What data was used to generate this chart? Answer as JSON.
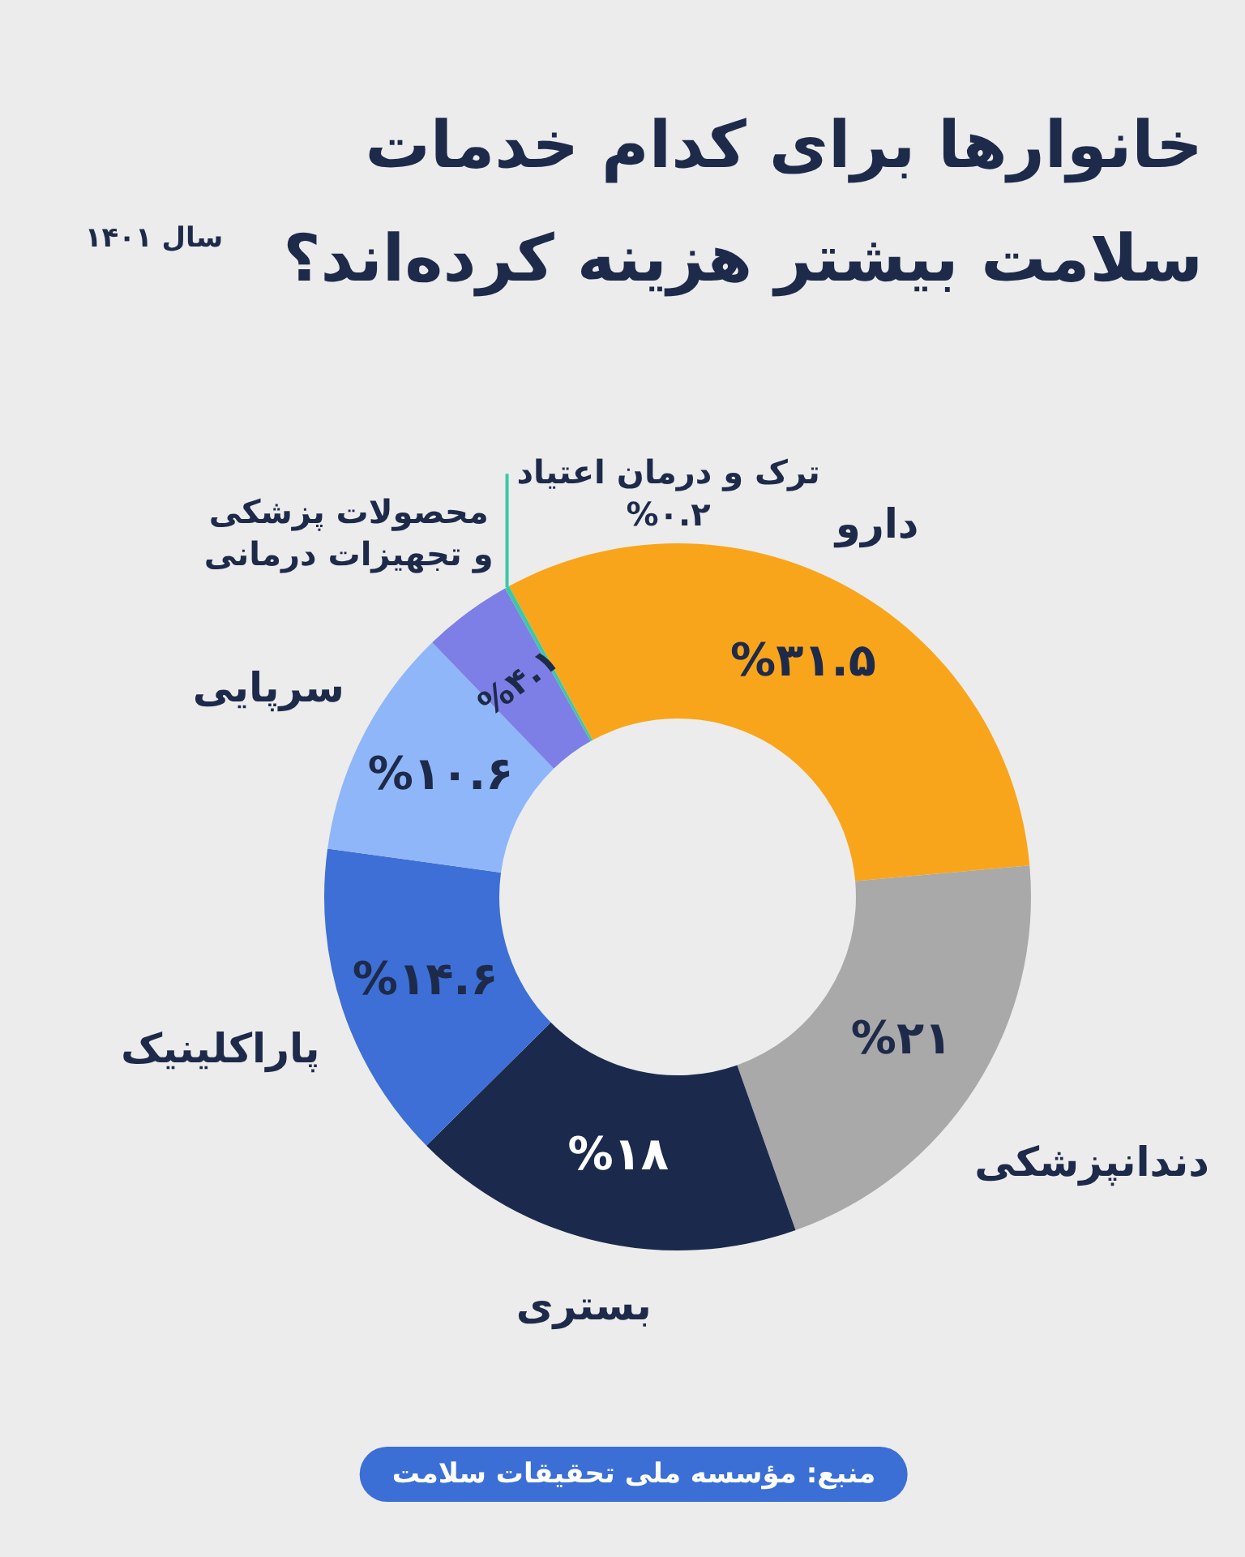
{
  "chart_data": {
    "type": "donut",
    "title": "خانوارها برای کدام خدمات سلامت بیشتر هزینه کرده‌اند؟",
    "subtitle": "سال ۱۴۰۱",
    "categories": [
      "دارو",
      "دندانپزشکی",
      "بستری",
      "پاراکلینیک",
      "سرپایی",
      "محصولات پزشکی و تجهیزات درمانی",
      "ترک و درمان اعتیاد"
    ],
    "values": [
      31.5,
      21,
      18,
      14.6,
      10.6,
      4.1,
      0.2
    ],
    "colors": [
      "#f9a51b",
      "#a9a9a9",
      "#1b2a4c",
      "#3d6fd6",
      "#8fb6f8",
      "#7d7fe6",
      "#3cc8a8"
    ],
    "value_labels": [
      "%۳۱.۵",
      "%۲۱",
      "%۱۸",
      "%۱۴.۶",
      "%۱۰.۶",
      "%۴.۱",
      "%۰.۲"
    ],
    "annotations": [
      "منبع: مؤسسه ملی تحقیقات سلامت"
    ]
  }
}
